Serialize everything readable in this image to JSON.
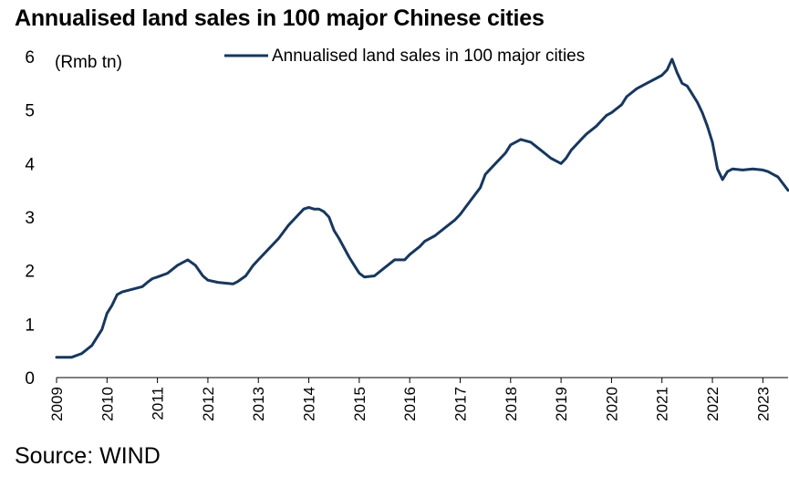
{
  "title": "Annualised land sales in 100 major Chinese cities",
  "source": "Source: WIND",
  "chart_data": {
    "type": "line",
    "title": "Annualised land sales in 100 major Chinese cities",
    "ylabel": "(Rmb tn)",
    "xlabel": "",
    "ylim": [
      0,
      6
    ],
    "yticks": [
      0,
      1,
      2,
      3,
      4,
      5,
      6
    ],
    "xlim": [
      2009.0,
      2023.5
    ],
    "xticks": [
      "2009",
      "2010",
      "2011",
      "2012",
      "2013",
      "2014",
      "2015",
      "2016",
      "2017",
      "2018",
      "2019",
      "2020",
      "2021",
      "2022",
      "2023"
    ],
    "grid": false,
    "legend_position": "top-center",
    "color": "#17375E",
    "series": [
      {
        "name": "Annualised land sales in 100 major cities",
        "x": [
          2009.0,
          2009.3,
          2009.5,
          2009.7,
          2009.9,
          2010.0,
          2010.1,
          2010.2,
          2010.3,
          2010.5,
          2010.7,
          2010.8,
          2010.9,
          2011.0,
          2011.2,
          2011.4,
          2011.6,
          2011.75,
          2011.9,
          2012.0,
          2012.2,
          2012.5,
          2012.6,
          2012.75,
          2012.9,
          2013.0,
          2013.2,
          2013.4,
          2013.6,
          2013.75,
          2013.9,
          2014.0,
          2014.1,
          2014.2,
          2014.3,
          2014.4,
          2014.5,
          2014.6,
          2014.8,
          2014.9,
          2015.0,
          2015.1,
          2015.3,
          2015.5,
          2015.7,
          2015.9,
          2016.0,
          2016.2,
          2016.3,
          2016.5,
          2016.7,
          2016.9,
          2017.0,
          2017.2,
          2017.4,
          2017.5,
          2017.7,
          2017.9,
          2018.0,
          2018.2,
          2018.4,
          2018.6,
          2018.8,
          2018.9,
          2019.0,
          2019.1,
          2019.2,
          2019.4,
          2019.5,
          2019.7,
          2019.9,
          2020.0,
          2020.2,
          2020.3,
          2020.5,
          2020.7,
          2020.9,
          2021.0,
          2021.1,
          2021.2,
          2021.3,
          2021.4,
          2021.5,
          2021.6,
          2021.7,
          2021.8,
          2021.9,
          2022.0,
          2022.1,
          2022.2,
          2022.3,
          2022.4,
          2022.6,
          2022.8,
          2023.0,
          2023.1,
          2023.2,
          2023.3,
          2023.5
        ],
        "values": [
          0.38,
          0.38,
          0.45,
          0.6,
          0.9,
          1.2,
          1.35,
          1.55,
          1.6,
          1.65,
          1.7,
          1.78,
          1.85,
          1.88,
          1.95,
          2.1,
          2.2,
          2.1,
          1.9,
          1.82,
          1.78,
          1.75,
          1.8,
          1.9,
          2.1,
          2.2,
          2.4,
          2.6,
          2.85,
          3.0,
          3.15,
          3.18,
          3.15,
          3.15,
          3.1,
          3.0,
          2.75,
          2.6,
          2.25,
          2.1,
          1.95,
          1.88,
          1.9,
          2.05,
          2.2,
          2.2,
          2.3,
          2.45,
          2.55,
          2.65,
          2.8,
          2.95,
          3.05,
          3.3,
          3.55,
          3.8,
          4.0,
          4.2,
          4.35,
          4.45,
          4.4,
          4.25,
          4.1,
          4.05,
          4.0,
          4.1,
          4.25,
          4.45,
          4.55,
          4.7,
          4.9,
          4.95,
          5.1,
          5.25,
          5.4,
          5.5,
          5.6,
          5.65,
          5.75,
          5.95,
          5.7,
          5.5,
          5.45,
          5.3,
          5.15,
          4.95,
          4.7,
          4.4,
          3.9,
          3.7,
          3.85,
          3.9,
          3.88,
          3.9,
          3.88,
          3.85,
          3.8,
          3.75,
          3.5
        ]
      }
    ]
  }
}
